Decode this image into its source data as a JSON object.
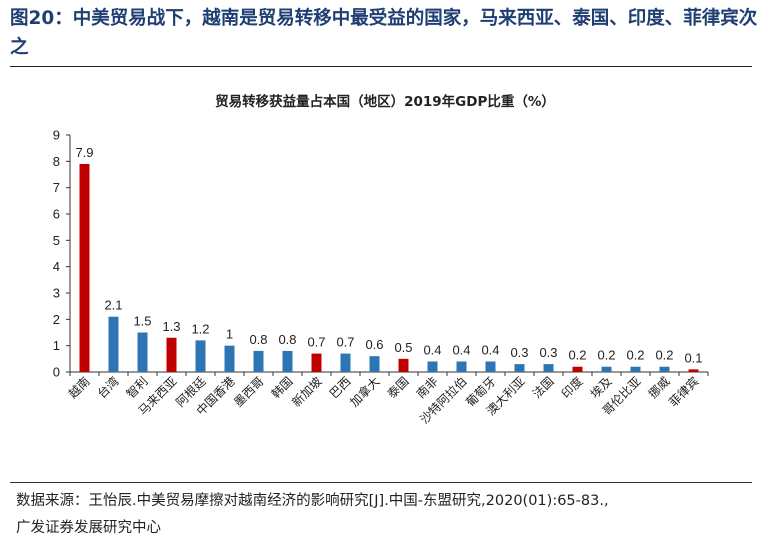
{
  "figure": {
    "title": "图20：中美贸易战下，越南是贸易转移中最受益的国家，马来西亚、泰国、印度、菲律宾次之"
  },
  "chart_data": {
    "type": "bar",
    "title": "贸易转移获益量占本国（地区）2019年GDP比重（%）",
    "categories": [
      "越南",
      "台湾",
      "智利",
      "马来西亚",
      "阿根廷",
      "中国香港",
      "墨西哥",
      "韩国",
      "新加坡",
      "巴西",
      "加拿大",
      "泰国",
      "南非",
      "沙特阿拉伯",
      "葡萄牙",
      "澳大利亚",
      "法国",
      "印度",
      "埃及",
      "哥伦比亚",
      "挪威",
      "菲律宾"
    ],
    "values": [
      7.9,
      2.1,
      1.5,
      1.3,
      1.2,
      1,
      0.8,
      0.8,
      0.7,
      0.7,
      0.6,
      0.5,
      0.4,
      0.4,
      0.4,
      0.3,
      0.3,
      0.2,
      0.2,
      0.2,
      0.2,
      0.1
    ],
    "value_labels": [
      "7.9",
      "2.1",
      "1.5",
      "1.3",
      "1.2",
      "1",
      "0.8",
      "0.8",
      "0.7",
      "0.7",
      "0.6",
      "0.5",
      "0.4",
      "0.4",
      "0.4",
      "0.3",
      "0.3",
      "0.2",
      "0.2",
      "0.2",
      "0.2",
      "0.1"
    ],
    "highlighted": [
      "越南",
      "马来西亚",
      "新加坡",
      "泰国",
      "印度",
      "菲律宾"
    ],
    "ylim": [
      0,
      9
    ],
    "yticks": [
      0,
      1,
      2,
      3,
      4,
      5,
      6,
      7,
      8,
      9
    ],
    "xlabel": "",
    "ylabel": "",
    "grid": false,
    "colors": {
      "default": "#2e75b6",
      "highlight": "#c00000",
      "axis": "#333333"
    }
  },
  "source": {
    "line1": "数据来源：王怡辰.中美贸易摩擦对越南经济的影响研究[J].中国-东盟研究,2020(01):65-83.,",
    "line2": "广发证券发展研究中心"
  }
}
